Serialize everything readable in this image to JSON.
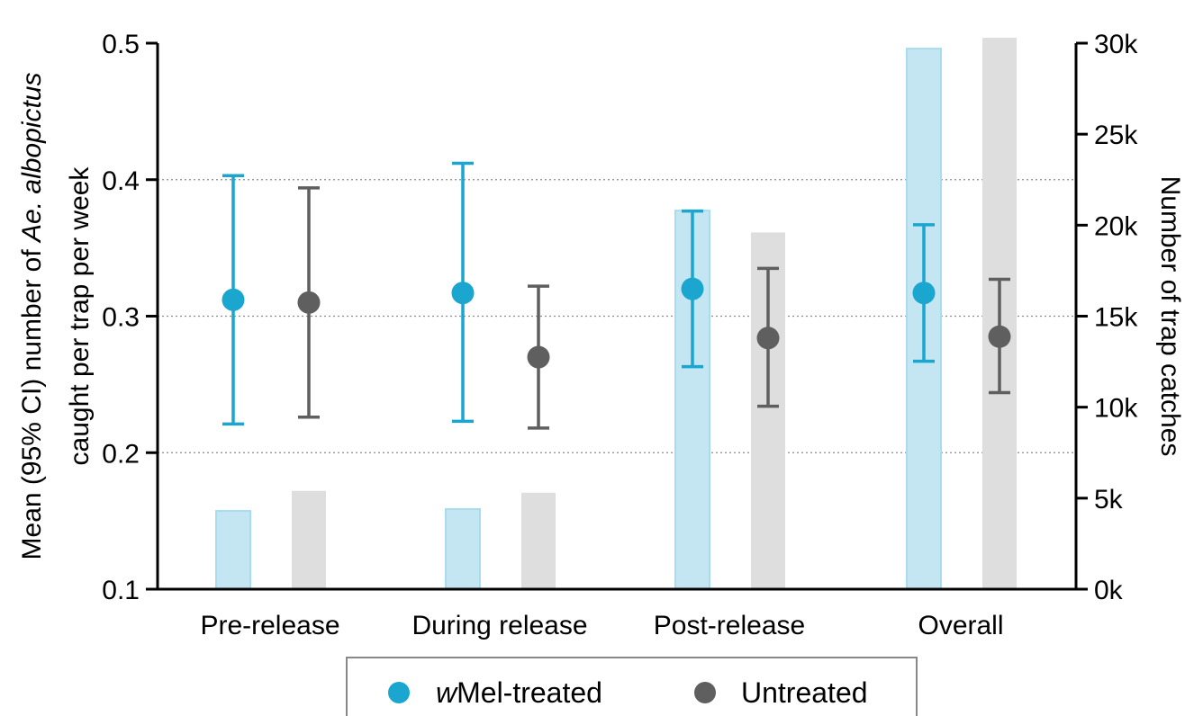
{
  "chart_data": {
    "type": "bar+errorbar",
    "categories": [
      "Pre-release",
      "During release",
      "Post-release",
      "Overall"
    ],
    "left_axis": {
      "label_parts": [
        "Mean (95% CI) number of ",
        "Ae. albopictus",
        ""
      ],
      "label_line2": "caught per trap per week",
      "ylim": [
        0.1,
        0.5
      ],
      "ticks": [
        0.1,
        0.2,
        0.3,
        0.4,
        0.5
      ],
      "tick_labels": [
        "0.1",
        "0.2",
        "0.3",
        "0.4",
        "0.5"
      ]
    },
    "right_axis": {
      "label": "Number of trap catches",
      "ylim": [
        0,
        30000
      ],
      "ticks": [
        0,
        5000,
        10000,
        15000,
        20000,
        25000,
        30000
      ],
      "tick_labels": [
        "0k",
        "5k",
        "10k",
        "15k",
        "20k",
        "25k",
        "30k"
      ]
    },
    "grid": {
      "horizontal_dotted": [
        0.2,
        0.3,
        0.4
      ]
    },
    "series": [
      {
        "name_prefix": "w",
        "name_rest": "Mel-treated",
        "color": "#1ba6cf",
        "bar_color": "#c4e6f2",
        "mean": [
          0.312,
          0.317,
          0.32,
          0.317
        ],
        "ci_low": [
          0.221,
          0.223,
          0.263,
          0.267
        ],
        "ci_high": [
          0.403,
          0.412,
          0.377,
          0.367
        ],
        "trap_catches": [
          4300,
          4400,
          20800,
          29700
        ]
      },
      {
        "name": "Untreated",
        "color": "#5f5f5f",
        "bar_color": "#dedede",
        "mean": [
          0.31,
          0.27,
          0.284,
          0.285
        ],
        "ci_low": [
          0.226,
          0.218,
          0.234,
          0.244
        ],
        "ci_high": [
          0.394,
          0.322,
          0.335,
          0.327
        ],
        "trap_catches": [
          5400,
          5300,
          19600,
          30300
        ]
      }
    ],
    "legend_position": "bottom-center"
  }
}
